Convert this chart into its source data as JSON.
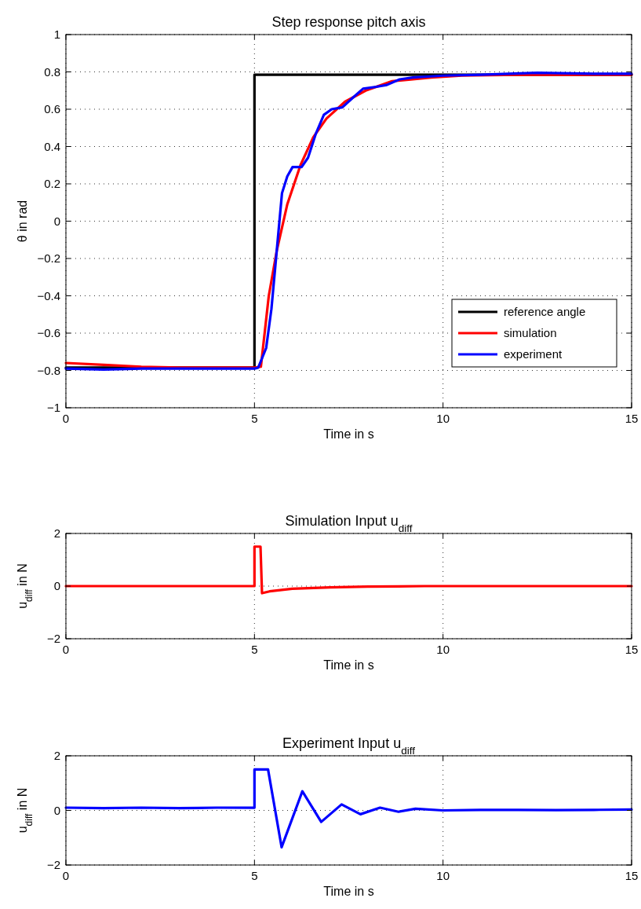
{
  "chart_data": [
    {
      "type": "line",
      "title": "Step response pitch axis",
      "xlabel": "Time in s",
      "ylabel": "θ in rad",
      "xlim": [
        0,
        15
      ],
      "ylim": [
        -1,
        1
      ],
      "xticks": [
        0,
        5,
        10,
        15
      ],
      "yticks": [
        -1,
        -0.8,
        -0.6,
        -0.4,
        -0.2,
        0,
        0.2,
        0.4,
        0.6,
        0.8,
        1
      ],
      "grid": true,
      "legend": "bottom right",
      "line_style": "solid",
      "series": [
        {
          "name": "reference angle",
          "color": "#000000",
          "x": [
            0,
            5,
            5,
            15
          ],
          "values": [
            -0.785,
            -0.785,
            0.785,
            0.785
          ]
        },
        {
          "name": "simulation",
          "color": "#ff0000",
          "x": [
            0,
            1,
            2,
            3,
            4,
            5,
            5.17,
            5.38,
            5.59,
            5.87,
            6.22,
            6.56,
            6.91,
            7.4,
            7.95,
            8.65,
            9.69,
            10.5,
            12,
            15
          ],
          "values": [
            -0.76,
            -0.77,
            -0.78,
            -0.785,
            -0.785,
            -0.785,
            -0.78,
            -0.4,
            -0.16,
            0.09,
            0.3,
            0.45,
            0.55,
            0.64,
            0.7,
            0.75,
            0.77,
            0.78,
            0.785,
            0.785
          ]
        },
        {
          "name": "experiment",
          "color": "#0000ff",
          "x": [
            0,
            1,
            2,
            3,
            4,
            5,
            5.1,
            5.31,
            5.45,
            5.59,
            5.73,
            5.87,
            6.01,
            6.25,
            6.42,
            6.63,
            6.84,
            7.05,
            7.33,
            7.6,
            7.88,
            8.23,
            8.51,
            8.85,
            9.2,
            10,
            11,
            12.5,
            14,
            15
          ],
          "values": [
            -0.79,
            -0.795,
            -0.79,
            -0.79,
            -0.79,
            -0.79,
            -0.785,
            -0.68,
            -0.47,
            -0.16,
            0.15,
            0.24,
            0.29,
            0.29,
            0.34,
            0.47,
            0.57,
            0.6,
            0.61,
            0.66,
            0.71,
            0.72,
            0.73,
            0.76,
            0.77,
            0.78,
            0.785,
            0.795,
            0.79,
            0.79
          ]
        }
      ]
    },
    {
      "type": "line",
      "title": "Simulation Input u$_{diff}$",
      "xlabel": "Time in s",
      "ylabel": "u$_{diff}$ in N",
      "xlim": [
        0,
        15
      ],
      "ylim": [
        -2,
        2
      ],
      "xticks": [
        0,
        5,
        10,
        15
      ],
      "yticks": [
        -2,
        0,
        2
      ],
      "grid": true,
      "legend": false,
      "line_style": "solid",
      "series": [
        {
          "color": "#ff0000",
          "x": [
            0,
            5,
            5,
            5.16,
            5.2,
            5.4,
            6,
            7,
            8,
            9.5,
            15
          ],
          "values": [
            0,
            0,
            1.5,
            1.5,
            -0.27,
            -0.2,
            -0.1,
            -0.05,
            -0.02,
            0,
            0
          ]
        }
      ]
    },
    {
      "type": "line",
      "title": "Experiment Input u$_{diff}$",
      "xlabel": "Time in s",
      "ylabel": "u$_{diff}$ in N",
      "xlim": [
        0,
        15
      ],
      "ylim": [
        -2,
        2
      ],
      "xticks": [
        0,
        5,
        10,
        15
      ],
      "yticks": [
        -2,
        0,
        2
      ],
      "grid": true,
      "legend": false,
      "line_style": "solid",
      "series": [
        {
          "color": "#0000ff",
          "x": [
            0,
            1,
            2,
            3,
            4,
            5,
            5,
            5.36,
            5.72,
            6.27,
            6.77,
            7.31,
            7.81,
            8.33,
            8.82,
            9.27,
            10,
            11,
            12,
            13,
            14,
            15
          ],
          "values": [
            0.1,
            0.08,
            0.1,
            0.08,
            0.1,
            0.1,
            1.5,
            1.5,
            -1.35,
            0.7,
            -0.42,
            0.22,
            -0.14,
            0.1,
            -0.05,
            0.06,
            0,
            0.02,
            0.02,
            0.01,
            0.02,
            0.03
          ]
        }
      ]
    }
  ]
}
